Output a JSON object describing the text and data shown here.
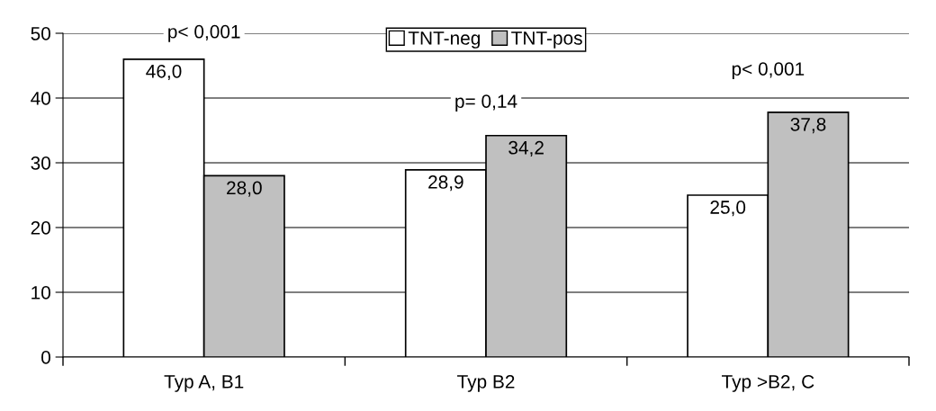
{
  "chart_data": {
    "type": "bar",
    "categories": [
      "Typ A, B1",
      "Typ B2",
      "Typ >B2, C"
    ],
    "series": [
      {
        "name": "TNT-neg",
        "color": "#ffffff",
        "values": [
          46.0,
          28.9,
          25.0
        ],
        "value_labels": [
          "46,0",
          "28,9",
          "25,0"
        ]
      },
      {
        "name": "TNT-pos",
        "color": "#c0c0c0",
        "values": [
          28.0,
          34.2,
          37.8
        ],
        "value_labels": [
          "28,0",
          "34,2",
          "37,8"
        ]
      }
    ],
    "annotations": [
      "p< 0,001",
      "p= 0,14",
      "p< 0,001"
    ],
    "ylim": [
      0,
      50
    ],
    "yticks": [
      0,
      10,
      20,
      30,
      40,
      50
    ],
    "grid": "y",
    "legend": "top"
  }
}
